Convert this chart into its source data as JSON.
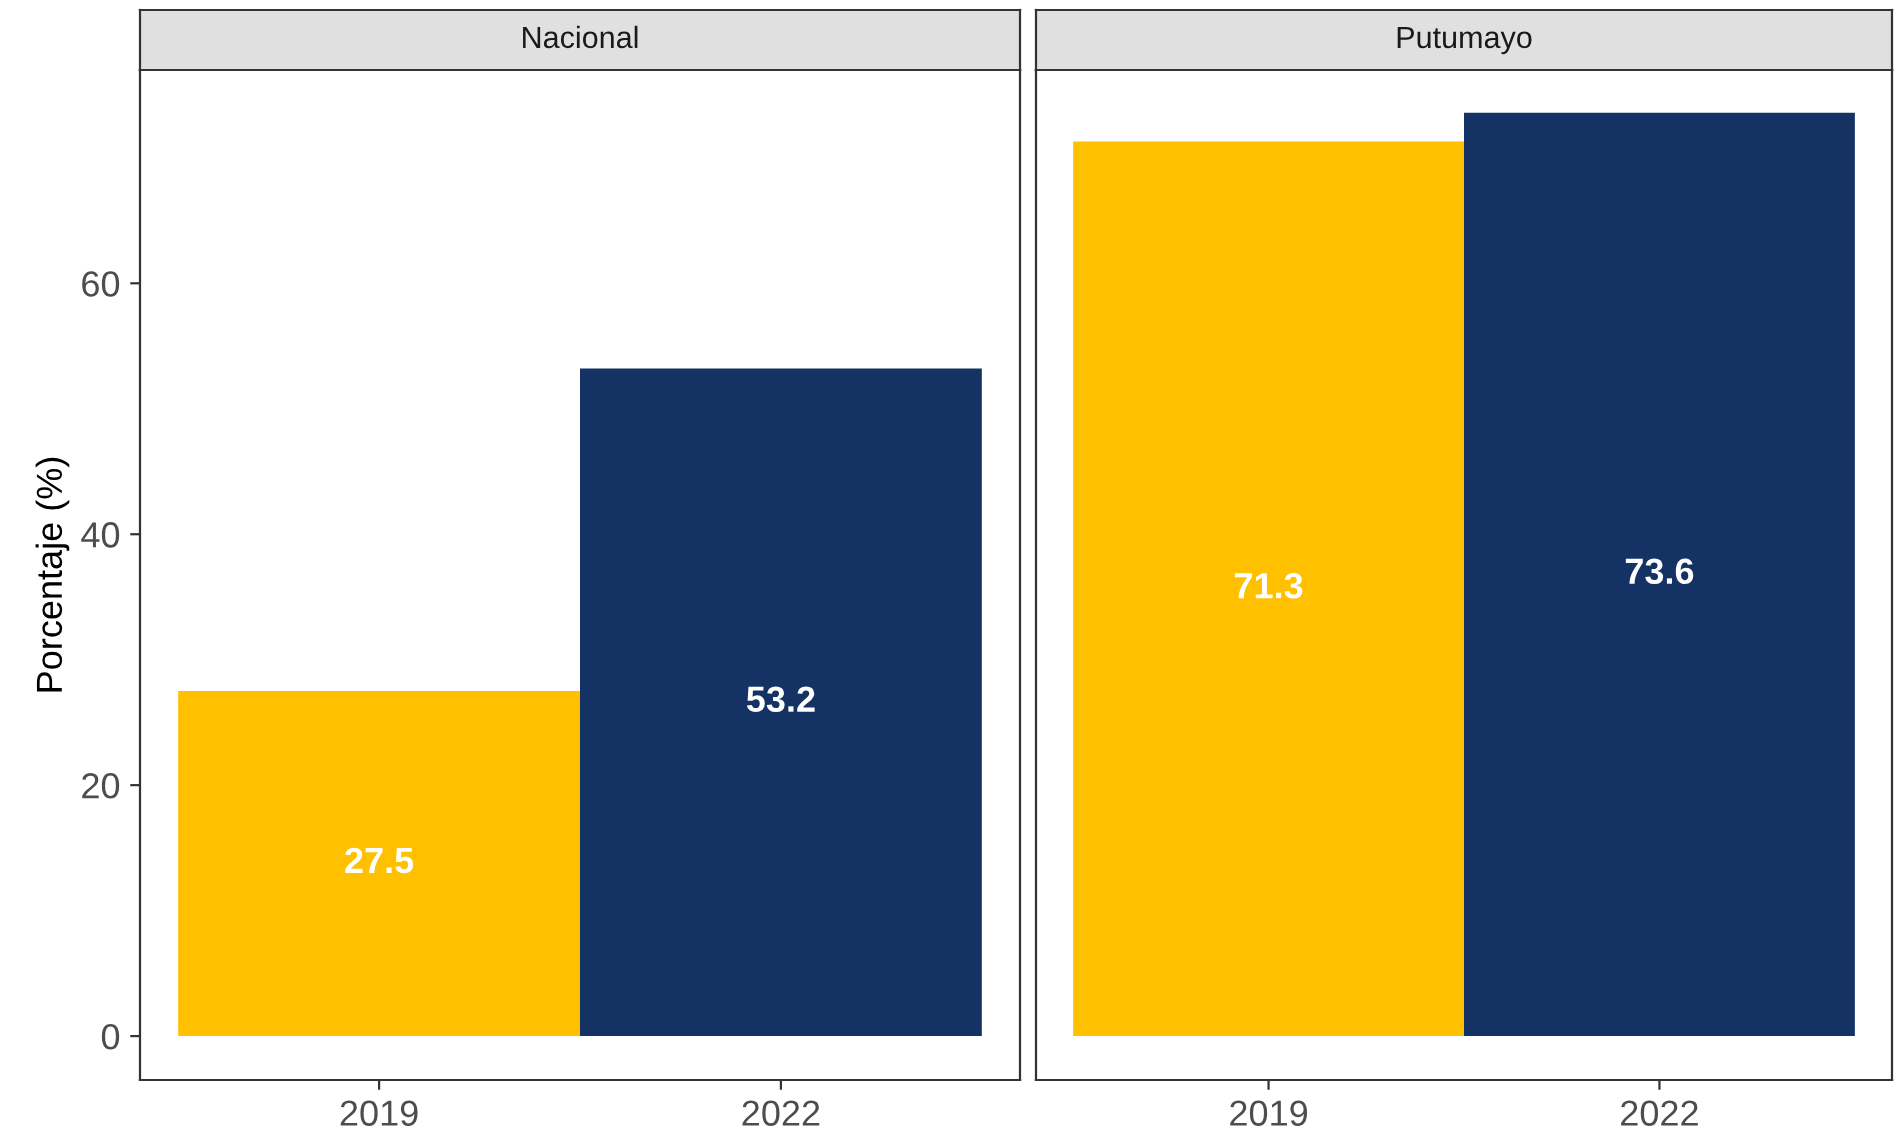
{
  "chart_data": [
    {
      "type": "bar",
      "title": "Nacional",
      "ylabel": "Porcentaje (%)",
      "categories": [
        "2019",
        "2022"
      ],
      "values": [
        27.5,
        53.2
      ],
      "colors": [
        "#ffc000",
        "#143264"
      ],
      "data_labels": true,
      "ylim": [
        -3.5,
        77
      ],
      "yticks": [
        0,
        20,
        40,
        60
      ],
      "grid": false,
      "legend": false
    },
    {
      "type": "bar",
      "title": "Putumayo",
      "categories": [
        "2019",
        "2022"
      ],
      "values": [
        71.3,
        73.6
      ],
      "colors": [
        "#ffc000",
        "#143264"
      ],
      "data_labels": true,
      "ylim": [
        -3.5,
        77
      ],
      "yticks": [
        0,
        20,
        40,
        60
      ],
      "grid": false,
      "legend": false,
      "tick_labels": "x"
    }
  ]
}
